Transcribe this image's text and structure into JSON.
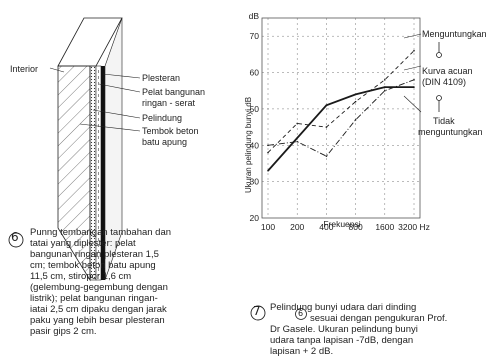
{
  "figure6": {
    "number": "6",
    "labels": {
      "interior": "Interior",
      "plaster": "Plesteran",
      "light_board": "Pelat bangunan",
      "light_board_2": "ringan - serat",
      "protector": "Pelindung",
      "wall": "Tembok beton",
      "wall_2": "batu apung"
    },
    "caption_lines": [
      "Punng tembangan tambahan dan",
      "tatai yang diplester: pelat",
      "bangunan ringan plesteran 1,5",
      "cm; tembok beton batu apung",
      "11,5 cm, stiropor 1,6 cm",
      "(gelembung-gegembung dengan",
      "listrik); pelat bangunan ringan-",
      "iatai 2,5 cm dipaku dengan jarak",
      "paku yang lebih besar plesteran",
      "pasir gips 2 cm."
    ]
  },
  "figure7": {
    "number": "7",
    "legend": {
      "favorable": "Menguntungkan",
      "reference_1": "Kurva acuan",
      "reference_2": "(DIN 4109)",
      "unfavorable_1": "Tidak",
      "unfavorable_2": "menguntungkan"
    },
    "caption_lines": [
      "Pelindung bunyi udara dari dinding",
      "sesuai dengan pengukuran Prof.",
      "Dr Gasele. Ukuran pelindung bunyi",
      "udara tanpa lapisan -7dB, dengan",
      "lapisan + 2 dB."
    ],
    "caption_ref": "6"
  },
  "chart_data": {
    "type": "line",
    "title": "",
    "xlabel": "Frekuensi",
    "ylabel": "Ukuran pelindung bunyi dB",
    "x_ticks": [
      "100",
      "200",
      "400",
      "800",
      "1600",
      "3200 Hz"
    ],
    "y_ticks": [
      "20",
      "30",
      "40",
      "50",
      "60",
      "70",
      "dB"
    ],
    "ylim": [
      20,
      75
    ],
    "x": [
      100,
      200,
      400,
      800,
      1600,
      3200
    ],
    "series": [
      {
        "name": "Kurva acuan (DIN 4109)",
        "style": "solid",
        "values": [
          33,
          42,
          51,
          54,
          56,
          56
        ]
      },
      {
        "name": "Menguntungkan",
        "style": "dashed",
        "values": [
          38,
          46,
          45,
          52,
          58,
          66
        ]
      },
      {
        "name": "Tidak menguntungkan",
        "style": "dash-dot",
        "values": [
          40,
          41,
          37,
          47,
          55,
          58
        ]
      }
    ],
    "colors": {
      "line": "#1a1a1a",
      "grid": "#555555"
    }
  }
}
